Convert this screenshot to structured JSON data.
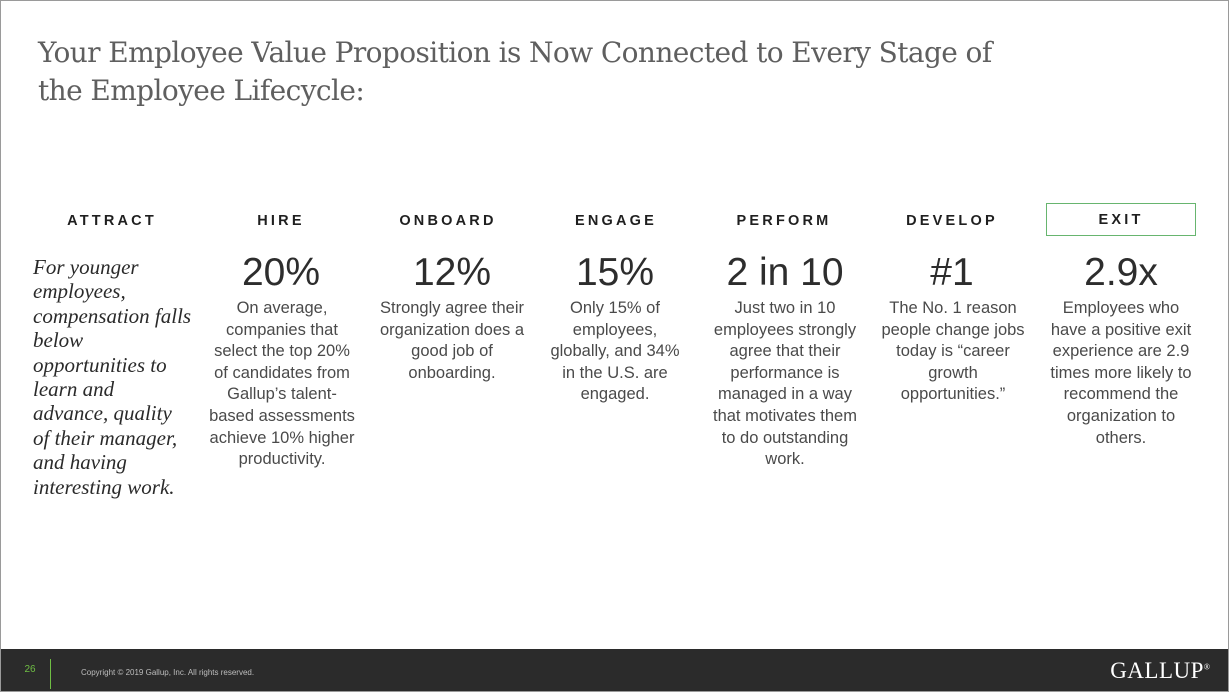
{
  "title": "Your Employee Value Proposition is Now Connected to Every Stage of the Employee Lifecycle:",
  "intro": "For younger employees, compensation falls below opportunities to learn and advance, quality of their manager, and having interesting work.",
  "stages": [
    {
      "label": "ATTRACT"
    },
    {
      "label": "HIRE",
      "stat": "20%",
      "description": "On average, companies that select the top 20% of candidates from Gallup’s talent-based assessments achieve 10% higher productivity."
    },
    {
      "label": "ONBOARD",
      "stat": "12%",
      "description": "Strongly agree their organization does a good job of onboarding."
    },
    {
      "label": "ENGAGE",
      "stat": "15%",
      "description": "Only 15% of employees, globally, and 34% in the U.S. are engaged."
    },
    {
      "label": "PERFORM",
      "stat": "2 in 10",
      "description": "Just two in 10 employees strongly agree that their performance is managed in a way that motivates them to do outstanding work."
    },
    {
      "label": "DEVELOP",
      "stat": "#1",
      "description": "The No. 1 reason people change jobs today is “career growth opportunities.”"
    },
    {
      "label": "EXIT",
      "stat": "2.9x",
      "description": "Employees who have a positive exit experience are 2.9 times more likely to recommend the organization to others.",
      "highlight_color": "#67b56f"
    }
  ],
  "footer": {
    "page_number": "26",
    "copyright": "Copyright © 2019 Gallup, Inc. All rights reserved.",
    "logo": "GALLUP",
    "logo_mark": "®",
    "accent_color": "#6fbe44"
  }
}
